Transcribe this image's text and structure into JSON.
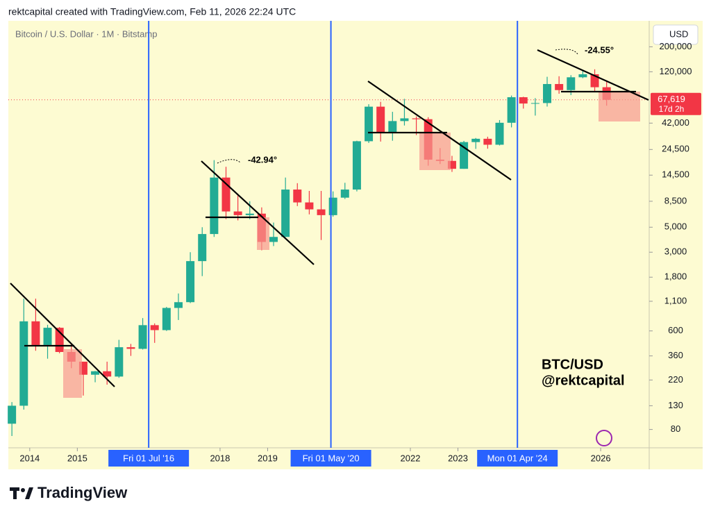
{
  "caption": "rektcapital created with TradingView.com, Feb 11, 2026 22:24 UTC",
  "brand": "TradingView",
  "chart_data": {
    "type": "candlestick",
    "title": "Bitcoin / U.S. Dollar · 1M · Bitstamp",
    "y_unit": "USD",
    "log_scale": true,
    "up_color": "#22ab94",
    "down_color": "#f23645",
    "x": [
      2013.5,
      2013.75,
      2014.0,
      2014.25,
      2014.5,
      2014.75,
      2015.0,
      2015.25,
      2015.5,
      2015.75,
      2016.0,
      2016.25,
      2016.5,
      2016.75,
      2017.0,
      2017.25,
      2017.5,
      2017.75,
      2018.0,
      2018.25,
      2018.5,
      2018.75,
      2019.0,
      2019.25,
      2019.5,
      2019.75,
      2020.0,
      2020.25,
      2020.5,
      2020.75,
      2021.0,
      2021.25,
      2021.5,
      2021.75,
      2022.0,
      2022.25,
      2022.5,
      2022.75,
      2023.0,
      2023.25,
      2023.5,
      2023.75,
      2024.0,
      2024.25,
      2024.5,
      2024.75,
      2025.0,
      2025.25,
      2025.5,
      2025.75,
      2026.0
    ],
    "open": [
      90,
      130,
      730,
      450,
      640,
      390,
      320,
      245,
      263,
      236,
      430,
      416,
      675,
      610,
      960,
      1080,
      2500,
      4350,
      13800,
      6900,
      6400,
      6600,
      3700,
      4100,
      10800,
      8300,
      7200,
      6400,
      9150,
      10800,
      29000,
      58800,
      35000,
      43800,
      46300,
      45500,
      19900,
      19400,
      16500,
      28500,
      30500,
      27000,
      42300,
      71300,
      62700,
      63300,
      93400,
      82500,
      107200,
      114000,
      87500
    ],
    "high": [
      140,
      1160,
      1160,
      680,
      650,
      460,
      320,
      265,
      320,
      500,
      460,
      780,
      700,
      980,
      1290,
      3000,
      5000,
      19700,
      17200,
      9900,
      8500,
      7500,
      5500,
      13800,
      12300,
      10500,
      10500,
      10400,
      12400,
      29300,
      61800,
      64900,
      52900,
      69000,
      48200,
      47400,
      25200,
      21500,
      29200,
      31000,
      31800,
      44700,
      73800,
      72000,
      70000,
      108300,
      109500,
      111900,
      124400,
      126200,
      97900
    ],
    "low": [
      70,
      120,
      400,
      340,
      380,
      280,
      160,
      210,
      200,
      230,
      360,
      410,
      470,
      600,
      750,
      1060,
      1840,
      4100,
      5900,
      5750,
      5880,
      3120,
      3400,
      4100,
      7700,
      6500,
      3850,
      6200,
      8900,
      10400,
      28000,
      28800,
      29300,
      40000,
      32900,
      17600,
      18200,
      15500,
      16500,
      24800,
      24900,
      26600,
      38500,
      56500,
      49000,
      58900,
      76600,
      74500,
      105300,
      80600,
      60000
    ],
    "close": [
      130,
      730,
      450,
      640,
      390,
      320,
      245,
      263,
      236,
      430,
      416,
      675,
      610,
      960,
      1080,
      2500,
      4350,
      13800,
      6900,
      6400,
      6600,
      3700,
      4100,
      10800,
      8300,
      7200,
      6400,
      9150,
      10800,
      29000,
      58800,
      35000,
      43800,
      46300,
      45500,
      19900,
      19400,
      16500,
      28500,
      30500,
      27000,
      42300,
      71300,
      62700,
      63300,
      93400,
      82500,
      107200,
      114000,
      87500,
      67600
    ],
    "xlim": [
      2013.55,
      2027.02
    ],
    "xticks": [
      2014,
      2015,
      2018,
      2019,
      2022,
      2023,
      2026
    ],
    "ylim": [
      55,
      340000
    ],
    "yticks": [
      {
        "value": 80,
        "label": "80"
      },
      {
        "value": 130,
        "label": "130"
      },
      {
        "value": 220,
        "label": "220"
      },
      {
        "value": 360,
        "label": "360"
      },
      {
        "value": 600,
        "label": "600"
      },
      {
        "value": 1100,
        "label": "1,100"
      },
      {
        "value": 1800,
        "label": "1,800"
      },
      {
        "value": 3000,
        "label": "3,000"
      },
      {
        "value": 5000,
        "label": "5,000"
      },
      {
        "value": 8500,
        "label": "8,500"
      },
      {
        "value": 14500,
        "label": "14,500"
      },
      {
        "value": 24500,
        "label": "24,500"
      },
      {
        "value": 42000,
        "label": "42,000"
      },
      {
        "value": 120000,
        "label": "120,000"
      },
      {
        "value": 200000,
        "label": "200,000"
      }
    ],
    "last_price": {
      "value": 67619,
      "label": "67,619"
    },
    "countdown": "17d 2h",
    "vlines": [
      {
        "value": 2016.5,
        "label": "Fri 01 Jul '16"
      },
      {
        "value": 2020.33,
        "label": "Fri 01 May '20"
      },
      {
        "value": 2024.25,
        "label": "Mon 01 Apr '24"
      }
    ],
    "vline_color": "#2962ff",
    "annotations": [
      "-42.94°",
      "-24.55°",
      "BTC/USD",
      "@rektcapital"
    ]
  }
}
